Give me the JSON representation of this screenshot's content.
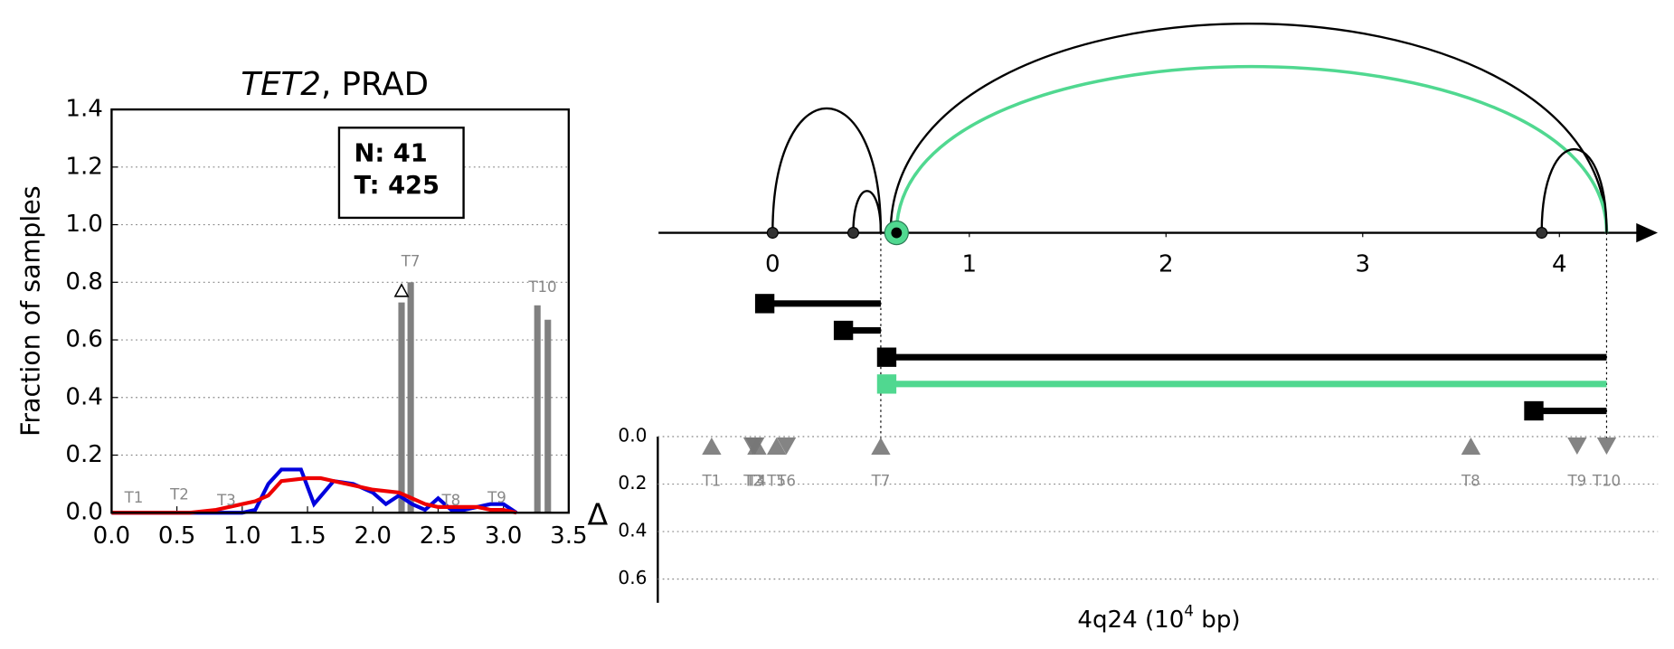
{
  "chart_data": [
    {
      "type": "bar_line",
      "title": [
        "TET2",
        ", PRAD"
      ],
      "ylabel": "Fraction of samples",
      "xlim": [
        0,
        3.5
      ],
      "xticks": [
        {
          "value": 0,
          "label": "0.0"
        },
        0.5,
        {
          "value": 1,
          "label": "1.0"
        },
        1.5,
        {
          "value": 2,
          "label": "2.0"
        },
        2.5,
        {
          "value": 3,
          "label": "3.0"
        },
        3.5
      ],
      "ylim": [
        0,
        1.4
      ],
      "yticks": [
        {
          "value": 0,
          "label": "0.0"
        },
        0.2,
        0.4,
        0.6,
        0.8,
        {
          "value": 1,
          "label": "1.0"
        },
        1.2,
        1.4
      ],
      "grid": true,
      "legend_box": [
        "N: 41",
        "T: 425"
      ],
      "bars": {
        "color": "#808080",
        "x": [
          2.22,
          2.29,
          3.26,
          3.34
        ],
        "values": [
          0.73,
          0.8,
          0.72,
          0.67
        ]
      },
      "series": [
        {
          "color": "#0000dd",
          "x": [
            0,
            0.8,
            1.0,
            1.1,
            1.2,
            1.3,
            1.45,
            1.55,
            1.7,
            1.85,
            2.0,
            2.1,
            2.2,
            2.3,
            2.4,
            2.5,
            2.6,
            2.7,
            2.9,
            3.0,
            3.1
          ],
          "values": [
            0,
            0,
            0,
            0.01,
            0.1,
            0.15,
            0.15,
            0.03,
            0.11,
            0.1,
            0.07,
            0.03,
            0.06,
            0.03,
            0.01,
            0.05,
            0.01,
            0.01,
            0.03,
            0.03,
            0
          ]
        },
        {
          "color": "#ee0000",
          "x": [
            0,
            0.6,
            0.8,
            1.0,
            1.1,
            1.2,
            1.3,
            1.5,
            1.6,
            1.8,
            2.0,
            2.2,
            2.3,
            2.4,
            2.5,
            2.6,
            2.8,
            2.9,
            3.0,
            3.1
          ],
          "values": [
            0,
            0,
            0.01,
            0.03,
            0.04,
            0.06,
            0.11,
            0.12,
            0.12,
            0.1,
            0.08,
            0.07,
            0.05,
            0.03,
            0.02,
            0.02,
            0.02,
            0.01,
            0.01,
            0
          ]
        }
      ],
      "annotations": {
        "labels": [
          "T1",
          "T2",
          "T3",
          "T7",
          "T8",
          "T9",
          "T10"
        ],
        "x": [
          0.17,
          0.52,
          0.88,
          2.29,
          2.6,
          2.95,
          3.3
        ],
        "y": [
          0.05,
          0.06,
          0.04,
          0.87,
          0.04,
          0.05,
          0.78
        ]
      },
      "delta_marker": {
        "x": 2.22,
        "y": 0.77
      }
    },
    {
      "type": "arc",
      "xlabel": [
        "4q24 (10",
        "4",
        " bp)"
      ],
      "xlim": [
        -0.58,
        4.5
      ],
      "xticks": [
        0,
        1,
        2,
        3,
        4
      ],
      "points": [
        0,
        0.41,
        3.91
      ],
      "highlight_point": 0.63,
      "highlight_color": "#50d890",
      "arcs": [
        {
          "start": 0,
          "end": 0.55,
          "color": "#000000"
        },
        {
          "start": 0.41,
          "end": 0.55,
          "color": "#000000"
        },
        {
          "start": 0.6,
          "end": 4.24,
          "color": "#000000"
        },
        {
          "start": 0.63,
          "end": 4.24,
          "color": "#50d890"
        },
        {
          "start": 3.91,
          "end": 4.24,
          "color": "#000000"
        }
      ],
      "segments": [
        {
          "start": -0.04,
          "end": 0.55,
          "color": "#000000"
        },
        {
          "start": 0.36,
          "end": 0.55,
          "color": "#000000"
        },
        {
          "start": 0.58,
          "end": 4.24,
          "color": "#000000"
        },
        {
          "start": 0.58,
          "end": 4.24,
          "color": "#50d890"
        },
        {
          "start": 3.87,
          "end": 4.24,
          "color": "#000000"
        }
      ],
      "guides": [
        0.55,
        4.24
      ],
      "delta_axis": {
        "ylabel": "Δ",
        "ylim": [
          0,
          0.7
        ],
        "yticks": [
          {
            "value": 0,
            "label": "0.0"
          },
          0.2,
          0.4,
          0.6
        ]
      },
      "tracks": {
        "labels": [
          "T1",
          "T2",
          "T3",
          "T4",
          "T5",
          "T6",
          "T7",
          "T8",
          "T9",
          "T10"
        ],
        "x": [
          -0.31,
          -0.1,
          -0.09,
          -0.08,
          0.02,
          0.07,
          0.55,
          3.55,
          4.09,
          4.24
        ],
        "values": [
          0.04,
          0.04,
          0.04,
          0.04,
          0.04,
          0.04,
          0.04,
          0.04,
          0.04,
          0.04
        ],
        "direction": [
          "up",
          "down",
          "down",
          "up",
          "up",
          "down",
          "up",
          "up",
          "down",
          "down"
        ]
      }
    }
  ]
}
